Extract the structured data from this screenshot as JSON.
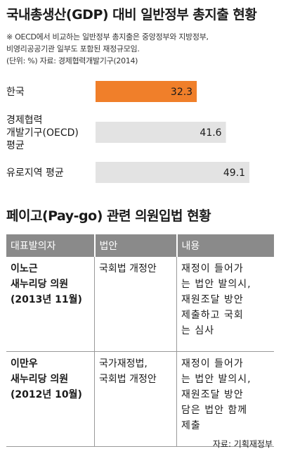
{
  "chart_title": "국내총생산(GDP) 대비 일반정부 총지출 현황",
  "notes": [
    "※ OECD에서 비교하는 일반정부 총지출은 중앙정부와 지방정부,",
    "비영리공공기관 일부도 포함된 재정규모임.",
    "(단위: %) 자료: 경제협력개발기구(2014)"
  ],
  "colors": {
    "highlight_bar": "#f07f2a",
    "bar": "#e3e3e3",
    "table_header": "#8a8a8a"
  },
  "chart_data": {
    "type": "bar",
    "orientation": "horizontal",
    "title": "국내총생산(GDP) 대비 일반정부 총지출 현황",
    "unit": "%",
    "categories": [
      [
        "한국"
      ],
      [
        "경제협력",
        "개발기구(OECD)",
        "평균"
      ],
      [
        "유로지역 평균"
      ]
    ],
    "values": [
      32.3,
      41.6,
      49.1
    ],
    "value_labels": [
      "32.3",
      "41.6",
      "49.1"
    ],
    "highlight_index": 0,
    "xlim": [
      0,
      52
    ],
    "grid": false,
    "legend": "none"
  },
  "table": {
    "title": "페이고(Pay-go) 관련 의원입법 현황",
    "headers": [
      "대표발의자",
      "법안",
      "내용"
    ],
    "rows": [
      {
        "sponsor": [
          "이노근",
          "새누리당 의원",
          "(2013년 11월)"
        ],
        "bill": [
          "국회법 개정안"
        ],
        "content": [
          "재정이 들어가",
          "는 법안 발의시,",
          "재원조달 방안",
          "제출하고 국회",
          "는 심사"
        ]
      },
      {
        "sponsor": [
          "이만우",
          "새누리당 의원",
          "(2012년 10월)"
        ],
        "bill": [
          "국가재정법,",
          "국회법 개정안"
        ],
        "content": [
          "재정이 들어가",
          "는 법안 발의시,",
          "재원조달 방안",
          "담은 법안 함께",
          "제출"
        ]
      }
    ],
    "source": "자료: 기획재정부"
  }
}
